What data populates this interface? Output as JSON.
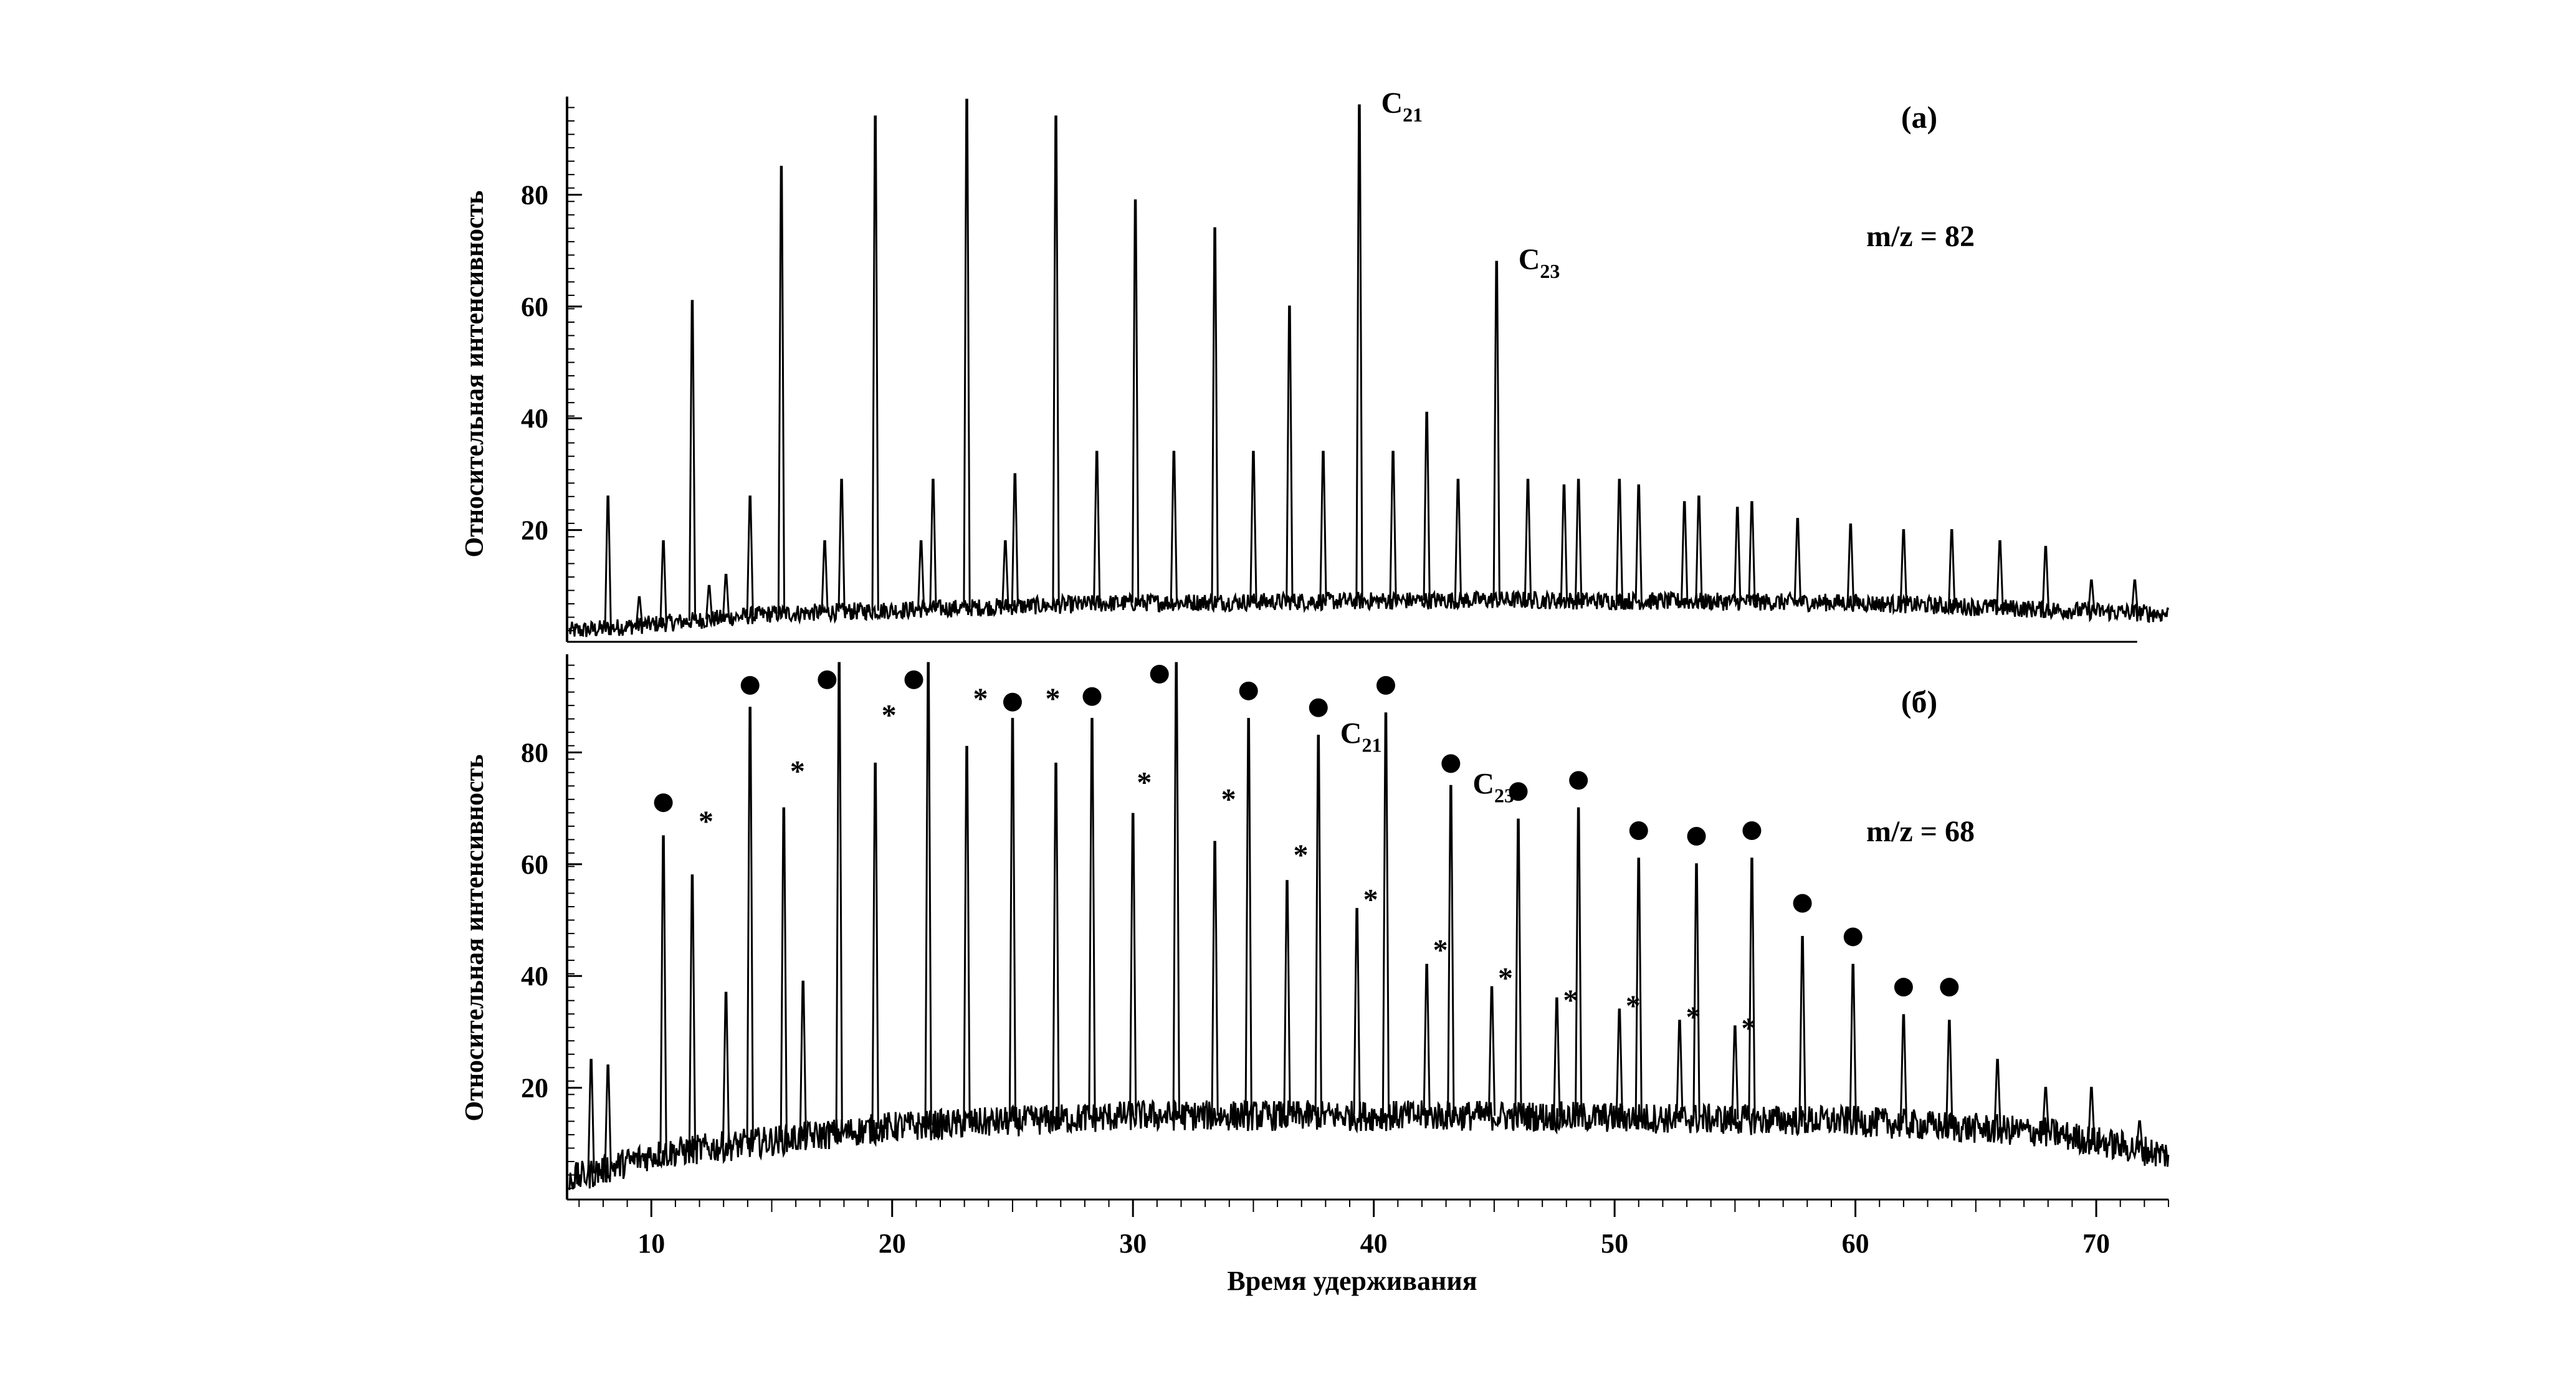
{
  "chart_data": [
    {
      "type": "line",
      "panel": "(а)",
      "annotation": "m/z = 82",
      "ylabel": "Относительная интенсивность",
      "xlabel": "",
      "xlim": [
        6.5,
        73
      ],
      "ylim": [
        0,
        97
      ],
      "yticks": [
        "20",
        "40",
        "60",
        "80"
      ],
      "ytick_values": [
        20,
        40,
        60,
        80
      ],
      "baseline": [
        [
          7,
          2
        ],
        [
          15,
          5
        ],
        [
          30,
          7
        ],
        [
          45,
          7.5
        ],
        [
          60,
          7
        ],
        [
          73,
          5
        ]
      ],
      "peaks": [
        {
          "x": 8.2,
          "y": 26
        },
        {
          "x": 9.5,
          "y": 8
        },
        {
          "x": 10.5,
          "y": 18
        },
        {
          "x": 11.7,
          "y": 61
        },
        {
          "x": 12.4,
          "y": 10
        },
        {
          "x": 13.1,
          "y": 12
        },
        {
          "x": 14.1,
          "y": 26
        },
        {
          "x": 15.4,
          "y": 85
        },
        {
          "x": 17.2,
          "y": 18
        },
        {
          "x": 17.9,
          "y": 29
        },
        {
          "x": 19.3,
          "y": 94
        },
        {
          "x": 21.2,
          "y": 18
        },
        {
          "x": 21.7,
          "y": 29
        },
        {
          "x": 23.1,
          "y": 97
        },
        {
          "x": 24.7,
          "y": 18
        },
        {
          "x": 25.1,
          "y": 30
        },
        {
          "x": 26.8,
          "y": 94
        },
        {
          "x": 28.5,
          "y": 34
        },
        {
          "x": 30.1,
          "y": 79
        },
        {
          "x": 31.7,
          "y": 34
        },
        {
          "x": 33.4,
          "y": 74
        },
        {
          "x": 35.0,
          "y": 34
        },
        {
          "x": 36.5,
          "y": 60
        },
        {
          "x": 37.9,
          "y": 34
        },
        {
          "x": 39.4,
          "y": 96
        },
        {
          "x": 40.8,
          "y": 34
        },
        {
          "x": 42.2,
          "y": 41
        },
        {
          "x": 43.5,
          "y": 29
        },
        {
          "x": 45.1,
          "y": 68
        },
        {
          "x": 46.4,
          "y": 29
        },
        {
          "x": 47.9,
          "y": 28
        },
        {
          "x": 48.5,
          "y": 29
        },
        {
          "x": 50.2,
          "y": 29
        },
        {
          "x": 51.0,
          "y": 28
        },
        {
          "x": 52.9,
          "y": 25
        },
        {
          "x": 53.5,
          "y": 26
        },
        {
          "x": 55.1,
          "y": 24
        },
        {
          "x": 55.7,
          "y": 25
        },
        {
          "x": 57.6,
          "y": 22
        },
        {
          "x": 59.8,
          "y": 21
        },
        {
          "x": 62.0,
          "y": 20
        },
        {
          "x": 64.0,
          "y": 20
        },
        {
          "x": 66.0,
          "y": 18
        },
        {
          "x": 67.9,
          "y": 17
        },
        {
          "x": 69.8,
          "y": 11
        },
        {
          "x": 71.6,
          "y": 11
        }
      ],
      "labels": [
        {
          "text": "C",
          "sub": "21",
          "x": 39.4,
          "y": 96
        },
        {
          "text": "C",
          "sub": "23",
          "x": 45.1,
          "y": 68
        }
      ]
    },
    {
      "type": "line",
      "panel": "(б)",
      "annotation": "m/z = 68",
      "ylabel": "Относительная интенсивность",
      "xlabel": "Время удерживания",
      "xlim": [
        6.5,
        73
      ],
      "ylim": [
        0,
        97
      ],
      "xticks": [
        "10",
        "20",
        "30",
        "40",
        "50",
        "60",
        "70"
      ],
      "xtick_values": [
        10,
        20,
        30,
        40,
        50,
        60,
        70
      ],
      "yticks": [
        "20",
        "40",
        "60",
        "80"
      ],
      "ytick_values": [
        20,
        40,
        60,
        80
      ],
      "baseline": [
        [
          7,
          4
        ],
        [
          10,
          8
        ],
        [
          20,
          13
        ],
        [
          30,
          15
        ],
        [
          45,
          15
        ],
        [
          60,
          14
        ],
        [
          68,
          12
        ],
        [
          73,
          8
        ]
      ],
      "peaks": [
        {
          "x": 7.5,
          "y": 25
        },
        {
          "x": 8.2,
          "y": 24
        },
        {
          "x": 10.5,
          "y": 65
        },
        {
          "x": 11.7,
          "y": 58
        },
        {
          "x": 13.1,
          "y": 37
        },
        {
          "x": 14.1,
          "y": 88
        },
        {
          "x": 15.5,
          "y": 70
        },
        {
          "x": 16.3,
          "y": 39
        },
        {
          "x": 17.8,
          "y": 96
        },
        {
          "x": 19.3,
          "y": 78
        },
        {
          "x": 21.5,
          "y": 96
        },
        {
          "x": 23.1,
          "y": 81
        },
        {
          "x": 25.0,
          "y": 86
        },
        {
          "x": 26.8,
          "y": 78
        },
        {
          "x": 28.3,
          "y": 86
        },
        {
          "x": 30.0,
          "y": 69
        },
        {
          "x": 31.8,
          "y": 96
        },
        {
          "x": 33.4,
          "y": 64
        },
        {
          "x": 34.8,
          "y": 86
        },
        {
          "x": 36.4,
          "y": 57
        },
        {
          "x": 37.7,
          "y": 83
        },
        {
          "x": 39.3,
          "y": 52
        },
        {
          "x": 40.5,
          "y": 87
        },
        {
          "x": 42.2,
          "y": 42
        },
        {
          "x": 43.2,
          "y": 74
        },
        {
          "x": 44.9,
          "y": 38
        },
        {
          "x": 46.0,
          "y": 68
        },
        {
          "x": 47.6,
          "y": 36
        },
        {
          "x": 48.5,
          "y": 70
        },
        {
          "x": 50.2,
          "y": 34
        },
        {
          "x": 51.0,
          "y": 61
        },
        {
          "x": 52.7,
          "y": 32
        },
        {
          "x": 53.4,
          "y": 60
        },
        {
          "x": 55.0,
          "y": 31
        },
        {
          "x": 55.7,
          "y": 61
        },
        {
          "x": 57.8,
          "y": 47
        },
        {
          "x": 59.9,
          "y": 42
        },
        {
          "x": 62.0,
          "y": 33
        },
        {
          "x": 63.9,
          "y": 32
        },
        {
          "x": 65.9,
          "y": 25
        },
        {
          "x": 67.9,
          "y": 20
        },
        {
          "x": 69.8,
          "y": 20
        },
        {
          "x": 71.8,
          "y": 14
        }
      ],
      "markers": {
        "circle": [
          [
            10.5,
            71
          ],
          [
            14.1,
            92
          ],
          [
            17.3,
            93
          ],
          [
            20.9,
            93
          ],
          [
            25.0,
            89
          ],
          [
            28.3,
            90
          ],
          [
            31.1,
            94
          ],
          [
            34.8,
            91
          ],
          [
            37.7,
            88
          ],
          [
            40.5,
            92
          ],
          [
            43.2,
            78
          ],
          [
            46.0,
            73
          ],
          [
            48.5,
            75
          ],
          [
            51.0,
            66
          ],
          [
            53.4,
            65
          ],
          [
            55.7,
            66
          ],
          [
            57.8,
            53
          ],
          [
            59.9,
            47
          ],
          [
            62.0,
            38
          ],
          [
            63.9,
            38
          ]
        ],
        "star": [
          [
            11.7,
            69
          ],
          [
            15.5,
            78
          ],
          [
            19.3,
            88
          ],
          [
            23.1,
            91
          ],
          [
            26.1,
            91
          ],
          [
            29.9,
            76
          ],
          [
            33.4,
            73
          ],
          [
            36.4,
            63
          ],
          [
            39.3,
            55
          ],
          [
            42.2,
            46
          ],
          [
            44.9,
            41
          ],
          [
            47.6,
            37
          ],
          [
            50.2,
            36
          ],
          [
            52.7,
            34
          ],
          [
            55.0,
            32
          ]
        ]
      },
      "labels": [
        {
          "text": "C",
          "sub": "21",
          "x": 37.7,
          "y": 83
        },
        {
          "text": "C",
          "sub": "23",
          "x": 43.2,
          "y": 74
        }
      ]
    }
  ]
}
